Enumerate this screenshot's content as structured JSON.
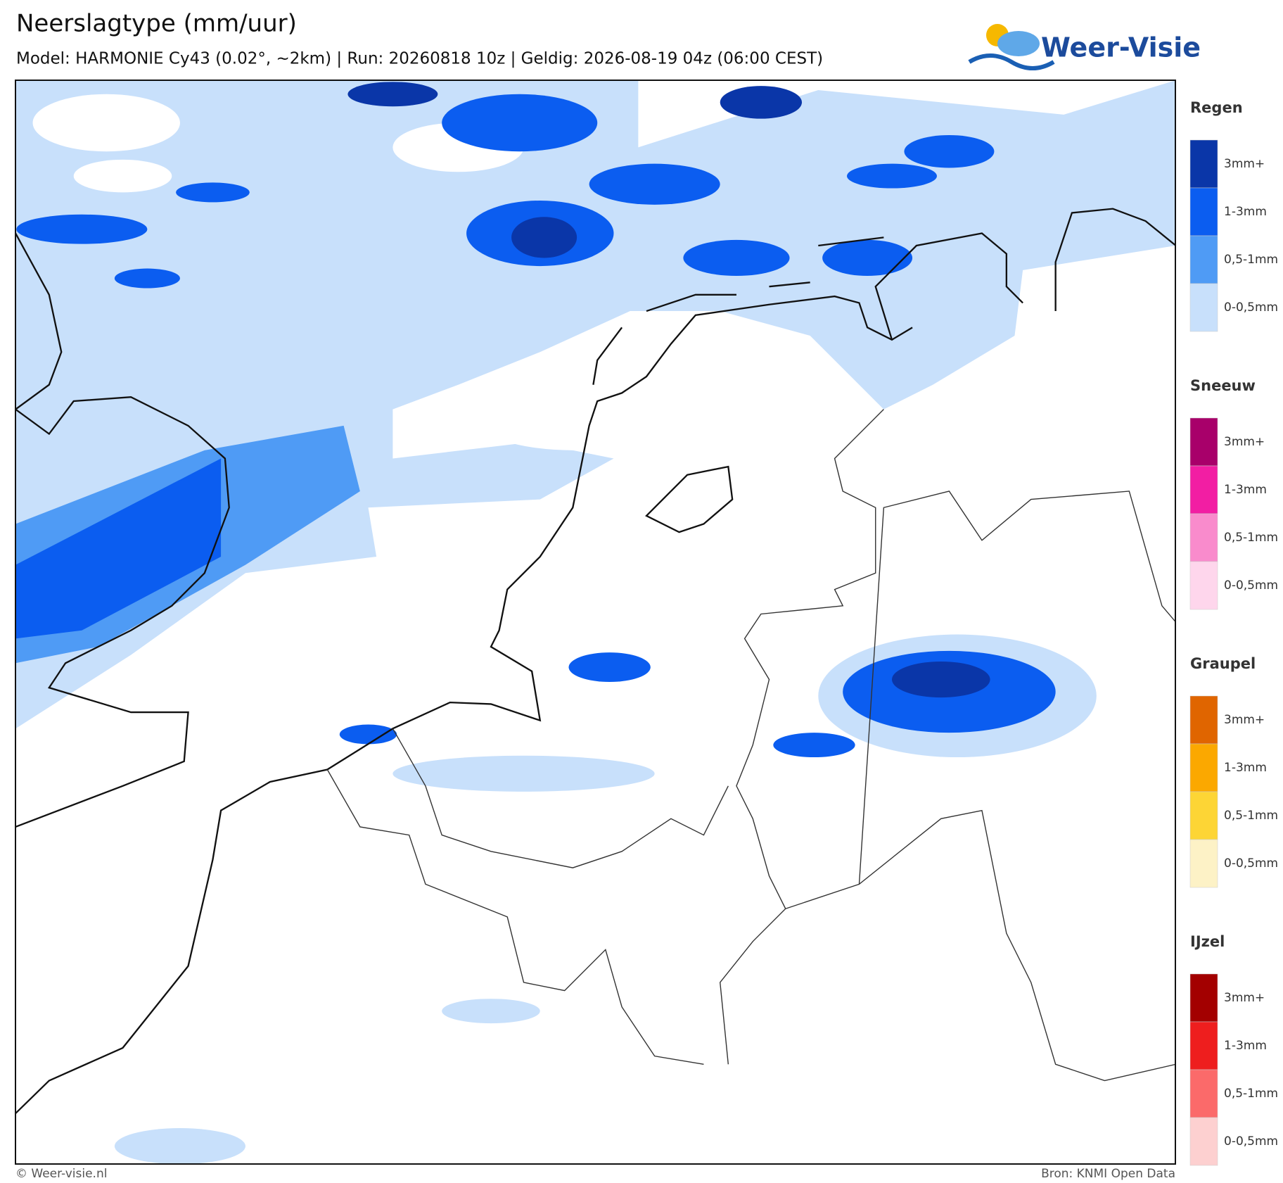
{
  "header": {
    "title": "Neerslagtype (mm/uur)",
    "subtitle": "Model: HARMONIE Cy43 (0.02°, ~2km)  |  Run: 20260818 10z  |  Geldig: 2026-08-19 04z (06:00 CEST)"
  },
  "logo": {
    "text": "Weer-Visie"
  },
  "legend": [
    {
      "title": "Regen",
      "items": [
        {
          "label": "3mm+",
          "color": "#0a36a8"
        },
        {
          "label": "1-3mm",
          "color": "#0b5df0"
        },
        {
          "label": "0,5-1mm",
          "color": "#4f9bf5"
        },
        {
          "label": "0-0,5mm",
          "color": "#c8e0fb"
        }
      ]
    },
    {
      "title": "Sneeuw",
      "items": [
        {
          "label": "3mm+",
          "color": "#a8006a"
        },
        {
          "label": "1-3mm",
          "color": "#f21ea3"
        },
        {
          "label": "0,5-1mm",
          "color": "#f98bcc"
        },
        {
          "label": "0-0,5mm",
          "color": "#fed6ec"
        }
      ]
    },
    {
      "title": "Graupel",
      "items": [
        {
          "label": "3mm+",
          "color": "#e06500"
        },
        {
          "label": "1-3mm",
          "color": "#fba800"
        },
        {
          "label": "0,5-1mm",
          "color": "#fdd535"
        },
        {
          "label": "0-0,5mm",
          "color": "#fdf2c6"
        }
      ]
    },
    {
      "title": "IJzel",
      "items": [
        {
          "label": "3mm+",
          "color": "#a30000"
        },
        {
          "label": "1-3mm",
          "color": "#ee1e1e"
        },
        {
          "label": "0,5-1mm",
          "color": "#fb6a6a"
        },
        {
          "label": "0-0,5mm",
          "color": "#fdd0d0"
        }
      ]
    }
  ],
  "footer": {
    "left": "© Weer-visie.nl",
    "right": "Bron: KNMI Open Data"
  }
}
